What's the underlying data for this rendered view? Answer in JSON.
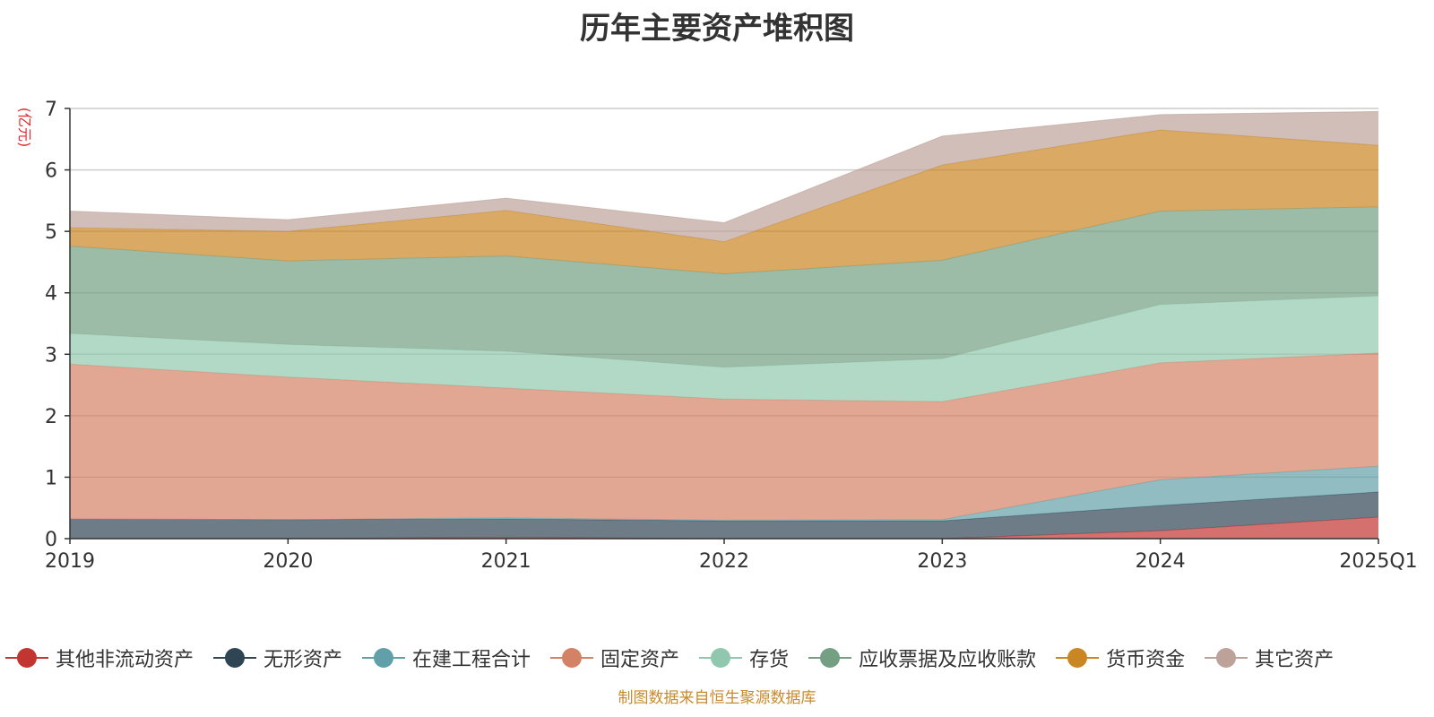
{
  "chart_data": {
    "type": "area",
    "stacked": true,
    "title": "历年主要资产堆积图",
    "ylabel": "(亿元)",
    "xlabel": "",
    "categories": [
      "2019",
      "2020",
      "2021",
      "2022",
      "2023",
      "2024",
      "2025Q1"
    ],
    "ylim": [
      0,
      7
    ],
    "yticks": [
      0,
      1,
      2,
      3,
      4,
      5,
      6,
      7
    ],
    "grid": true,
    "legend_position": "bottom",
    "series": [
      {
        "name": "其他非流动资产",
        "color": "#c23531",
        "values": [
          0.0,
          0.0,
          0.02,
          0.0,
          0.0,
          0.13,
          0.35
        ]
      },
      {
        "name": "无形资产",
        "color": "#2f4554",
        "values": [
          0.32,
          0.31,
          0.3,
          0.29,
          0.29,
          0.41,
          0.41
        ]
      },
      {
        "name": "在建工程合计",
        "color": "#61a0a8",
        "values": [
          0.0,
          0.0,
          0.02,
          0.01,
          0.02,
          0.42,
          0.42
        ]
      },
      {
        "name": "固定资产",
        "color": "#d48265",
        "values": [
          2.52,
          2.32,
          2.11,
          1.97,
          1.92,
          1.9,
          1.84
        ]
      },
      {
        "name": "存货",
        "color": "#91c7ae",
        "values": [
          0.5,
          0.53,
          0.6,
          0.52,
          0.7,
          0.95,
          0.93
        ]
      },
      {
        "name": "应收票据及应收账款",
        "color": "#749f83",
        "values": [
          1.42,
          1.36,
          1.55,
          1.52,
          1.6,
          1.52,
          1.45
        ]
      },
      {
        "name": "货币资金",
        "color": "#ca8622",
        "values": [
          0.3,
          0.48,
          0.74,
          0.52,
          1.55,
          1.32,
          1.0
        ]
      },
      {
        "name": "其它资产",
        "color": "#bda29a",
        "values": [
          0.27,
          0.19,
          0.2,
          0.31,
          0.47,
          0.25,
          0.55
        ]
      }
    ]
  },
  "source_note": "制图数据来自恒生聚源数据库"
}
